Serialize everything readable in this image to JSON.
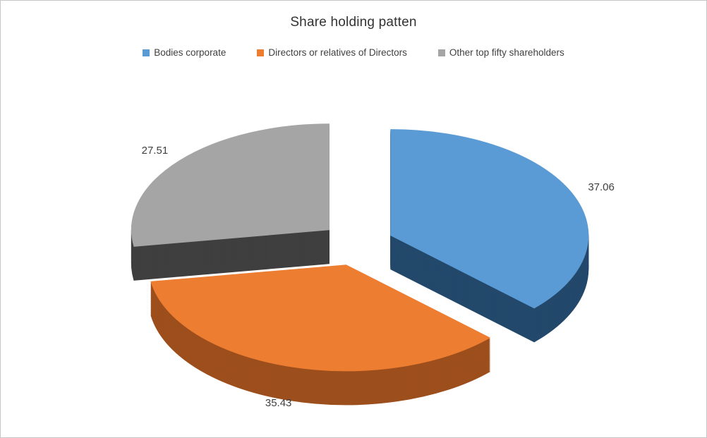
{
  "chart": {
    "title": "Share holding patten",
    "legend_position": "top"
  },
  "chart_data": {
    "type": "pie",
    "style": "3d-exploded-pie",
    "title": "Share holding patten",
    "categories": [
      "Bodies corporate",
      "Directors or relatives of Directors",
      "Other top fifty shareholders"
    ],
    "values": [
      37.06,
      35.43,
      27.51
    ],
    "data_labels": [
      "37.06",
      "35.43",
      "27.51"
    ],
    "colors": [
      "#5B9BD5",
      "#ED7D31",
      "#A5A5A5"
    ],
    "wall_colors": [
      "#23486B",
      "#9C4E1C",
      "#3F3F3F"
    ],
    "label_color": "#404040",
    "start_angle_deg": 0,
    "direction": "clockwise",
    "legend_position": "top",
    "legend": [
      {
        "label": "Bodies corporate",
        "color": "#5B9BD5"
      },
      {
        "label": "Directors or relatives of Directors",
        "color": "#ED7D31"
      },
      {
        "label": "Other top fifty shareholders",
        "color": "#A5A5A5"
      }
    ]
  }
}
